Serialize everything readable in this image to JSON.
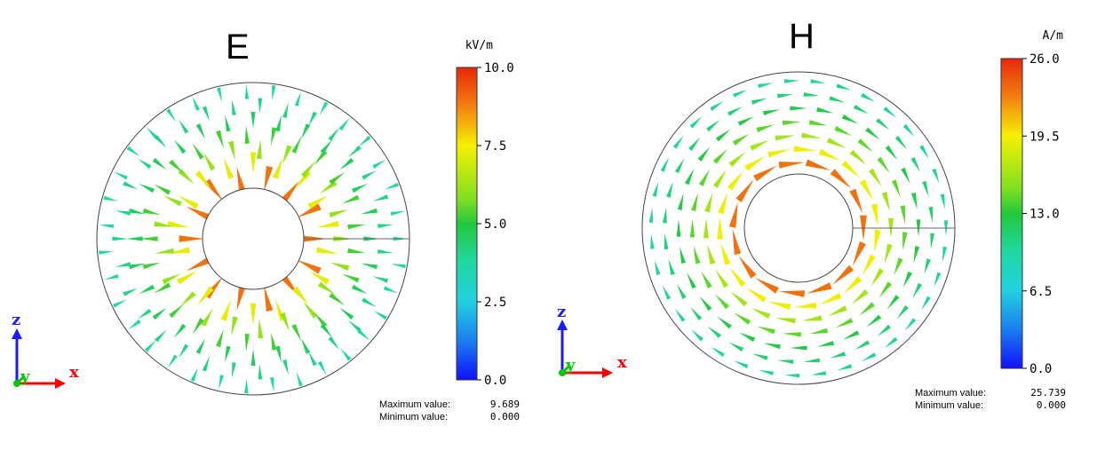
{
  "panels": [
    {
      "id": "E",
      "title": "E",
      "unit": "kV/m",
      "ticks": [
        "10.0",
        "7.5",
        "5.0",
        "2.5",
        "0.0"
      ],
      "max_label": "Maximum value:",
      "max_value": "9.689",
      "min_label": "Minimum value:",
      "min_value": "0.000",
      "field": "radial"
    },
    {
      "id": "H",
      "title": "H",
      "unit": "A/m",
      "ticks": [
        "26.0",
        "19.5",
        "13.0",
        "6.5",
        "0.0"
      ],
      "max_label": "Maximum value:",
      "max_value": "25.739",
      "min_label": "Minimum value:",
      "min_value": "0.000",
      "field": "azimuthal"
    }
  ],
  "axes": {
    "vertical": "z",
    "horizontal": "x",
    "depth": "y"
  },
  "colors": {
    "axis_z": "#1a1aff",
    "axis_x": "#ff0000",
    "axis_y": "#00cc00"
  }
}
